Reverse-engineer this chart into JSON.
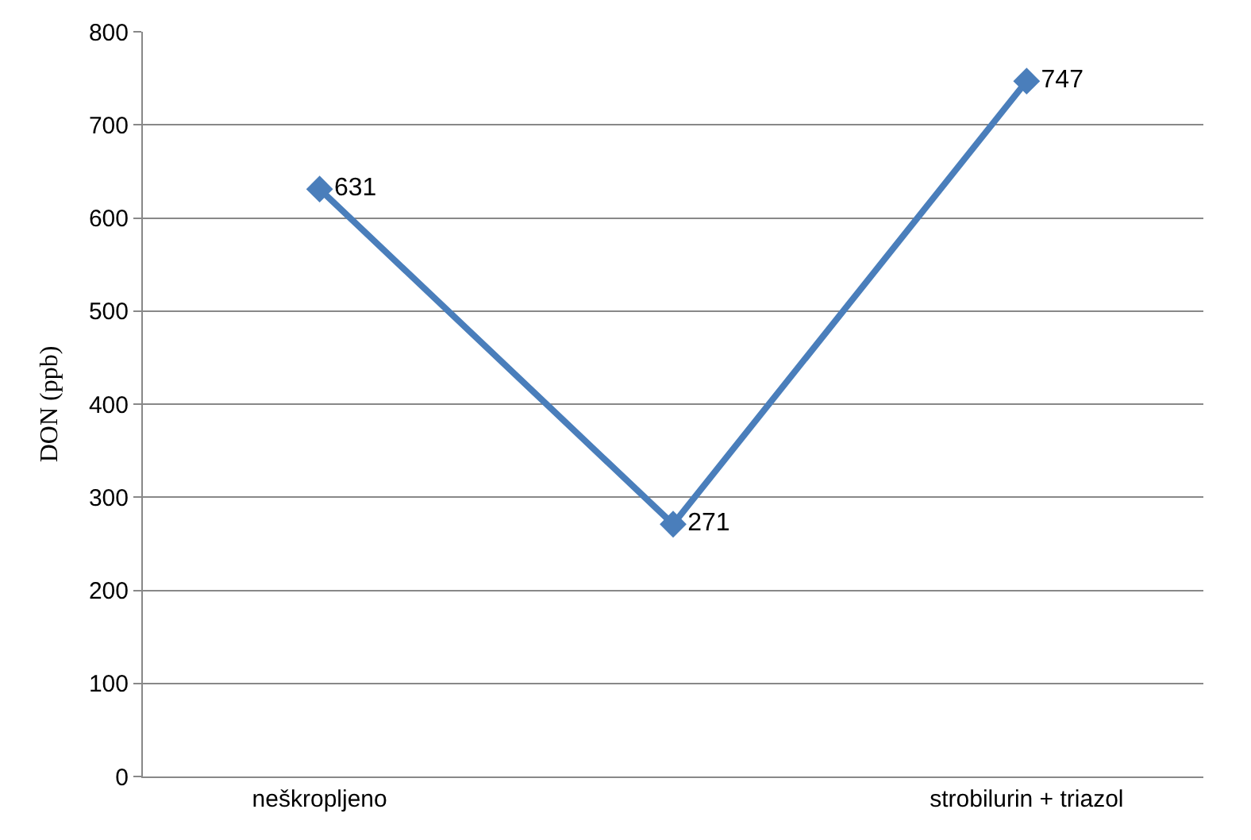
{
  "chart_data": {
    "type": "line",
    "ylabel": "DON (ppb)",
    "categories": [
      "neškropljeno",
      null,
      "strobilurin + triazol"
    ],
    "series": [
      {
        "color": "#4a7ebb",
        "values": [
          631,
          271,
          747
        ]
      }
    ],
    "ylim": [
      0,
      800
    ],
    "yticks": [
      0,
      100,
      200,
      300,
      400,
      500,
      600,
      700,
      800
    ],
    "grid": "y",
    "legend": false,
    "marker": "diamond",
    "line_style": "solid",
    "data_labels": true
  }
}
